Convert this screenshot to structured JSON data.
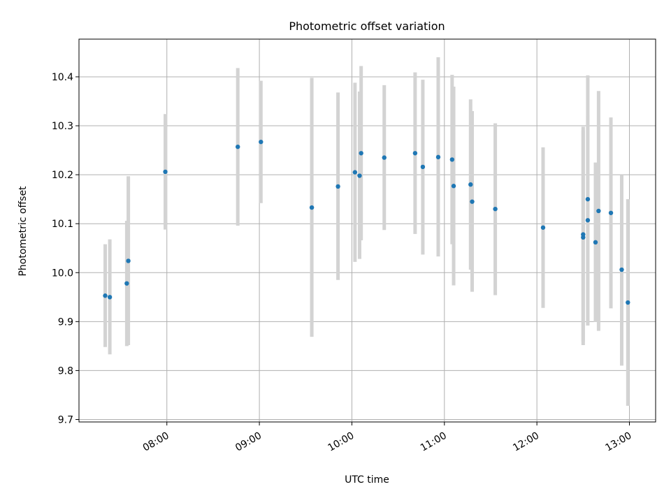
{
  "chart_data": {
    "type": "scatter",
    "title": "Photometric offset variation",
    "xlabel": "UTC time",
    "ylabel": "Photometric offset",
    "grid": true,
    "x_tick_labels": [
      "08:00",
      "09:00",
      "10:00",
      "11:00",
      "12:00",
      "13:00"
    ],
    "y_tick_labels": [
      "9.7",
      "9.8",
      "9.9",
      "10.0",
      "10.1",
      "10.2",
      "10.3",
      "10.4"
    ],
    "xlim": [
      "07:03",
      "13:17"
    ],
    "ylim": [
      9.695,
      10.477
    ],
    "colors": {
      "points": "#1f77b4",
      "errorbars": "#d3d3d3",
      "grid": "#b0b0b0"
    },
    "points": [
      {
        "x": "07:20",
        "y": 9.953,
        "err_low": 9.848,
        "err_high": 10.058
      },
      {
        "x": "07:23",
        "y": 9.95,
        "err_low": 9.833,
        "err_high": 10.068
      },
      {
        "x": "07:34",
        "y": 9.978,
        "err_low": 9.85,
        "err_high": 10.106
      },
      {
        "x": "07:35",
        "y": 10.024,
        "err_low": 9.852,
        "err_high": 10.197
      },
      {
        "x": "07:59",
        "y": 10.206,
        "err_low": 10.088,
        "err_high": 10.324
      },
      {
        "x": "08:46",
        "y": 10.257,
        "err_low": 10.096,
        "err_high": 10.418
      },
      {
        "x": "09:01",
        "y": 10.267,
        "err_low": 10.142,
        "err_high": 10.392
      },
      {
        "x": "09:34",
        "y": 10.133,
        "err_low": 9.869,
        "err_high": 10.398
      },
      {
        "x": "09:51",
        "y": 10.176,
        "err_low": 9.985,
        "err_high": 10.368
      },
      {
        "x": "10:02",
        "y": 10.205,
        "err_low": 10.022,
        "err_high": 10.388
      },
      {
        "x": "10:05",
        "y": 10.198,
        "err_low": 10.028,
        "err_high": 10.37
      },
      {
        "x": "10:06",
        "y": 10.244,
        "err_low": 10.066,
        "err_high": 10.422
      },
      {
        "x": "10:21",
        "y": 10.235,
        "err_low": 10.087,
        "err_high": 10.383
      },
      {
        "x": "10:41",
        "y": 10.244,
        "err_low": 10.079,
        "err_high": 10.409
      },
      {
        "x": "10:46",
        "y": 10.216,
        "err_low": 10.037,
        "err_high": 10.394
      },
      {
        "x": "10:56",
        "y": 10.236,
        "err_low": 10.033,
        "err_high": 10.44
      },
      {
        "x": "11:05",
        "y": 10.231,
        "err_low": 10.058,
        "err_high": 10.404
      },
      {
        "x": "11:06",
        "y": 10.177,
        "err_low": 9.974,
        "err_high": 10.38
      },
      {
        "x": "11:17",
        "y": 10.18,
        "err_low": 10.006,
        "err_high": 10.354
      },
      {
        "x": "11:18",
        "y": 10.145,
        "err_low": 9.961,
        "err_high": 10.33
      },
      {
        "x": "11:33",
        "y": 10.13,
        "err_low": 9.954,
        "err_high": 10.305
      },
      {
        "x": "12:04",
        "y": 10.092,
        "err_low": 9.928,
        "err_high": 10.256
      },
      {
        "x": "12:30",
        "y": 10.078,
        "err_low": 9.859,
        "err_high": 10.298
      },
      {
        "x": "12:30",
        "y": 10.072,
        "err_low": 9.852,
        "err_high": 10.291
      },
      {
        "x": "12:33",
        "y": 10.15,
        "err_low": 9.896,
        "err_high": 10.403
      },
      {
        "x": "12:33",
        "y": 10.107,
        "err_low": 9.892,
        "err_high": 10.322
      },
      {
        "x": "12:38",
        "y": 10.062,
        "err_low": 9.899,
        "err_high": 10.225
      },
      {
        "x": "12:40",
        "y": 10.126,
        "err_low": 9.881,
        "err_high": 10.371
      },
      {
        "x": "12:48",
        "y": 10.122,
        "err_low": 9.927,
        "err_high": 10.317
      },
      {
        "x": "12:55",
        "y": 10.006,
        "err_low": 9.81,
        "err_high": 10.2
      },
      {
        "x": "12:59",
        "y": 9.939,
        "err_low": 9.728,
        "err_high": 10.15
      }
    ]
  }
}
